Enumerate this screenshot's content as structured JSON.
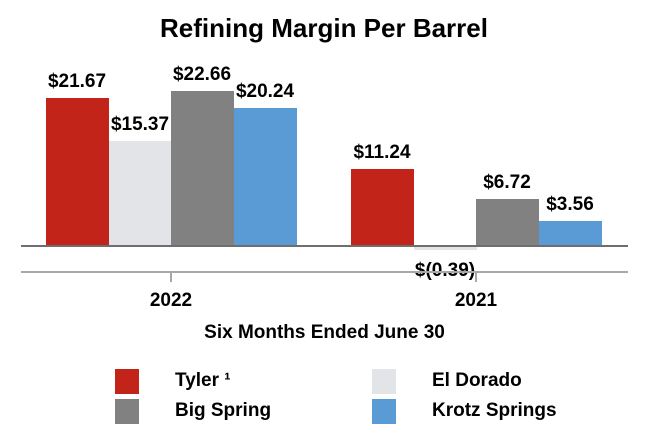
{
  "chart_data": {
    "type": "bar",
    "title": "Refining Margin Per Barrel",
    "xlabel": "Six Months Ended June 30",
    "ylabel": "",
    "categories": [
      "2022",
      "2021"
    ],
    "series": [
      {
        "name": "Tyler ¹",
        "color": "#c2241a",
        "values": [
          21.67,
          11.24
        ],
        "labels": [
          "$21.67",
          "$11.24"
        ]
      },
      {
        "name": "El Dorado",
        "color": "#e2e4e8",
        "values": [
          15.37,
          -0.39
        ],
        "labels": [
          "$15.37",
          "$(0.39)"
        ]
      },
      {
        "name": "Big Spring",
        "color": "#818181",
        "values": [
          22.66,
          6.72
        ],
        "labels": [
          "$22.66",
          "$6.72"
        ]
      },
      {
        "name": "Krotz Springs",
        "color": "#5b9bd5",
        "values": [
          20.24,
          3.56
        ],
        "labels": [
          "$20.24",
          "$3.56"
        ]
      }
    ],
    "ylim": [
      -2,
      26
    ],
    "grid": false,
    "legend_position": "bottom"
  },
  "legend": {
    "items": [
      {
        "label": "Tyler ¹",
        "color": "#c2241a"
      },
      {
        "label": "Big Spring",
        "color": "#818181"
      },
      {
        "label": "El Dorado",
        "color": "#e2e4e8"
      },
      {
        "label": "Krotz Springs",
        "color": "#5b9bd5"
      }
    ]
  }
}
